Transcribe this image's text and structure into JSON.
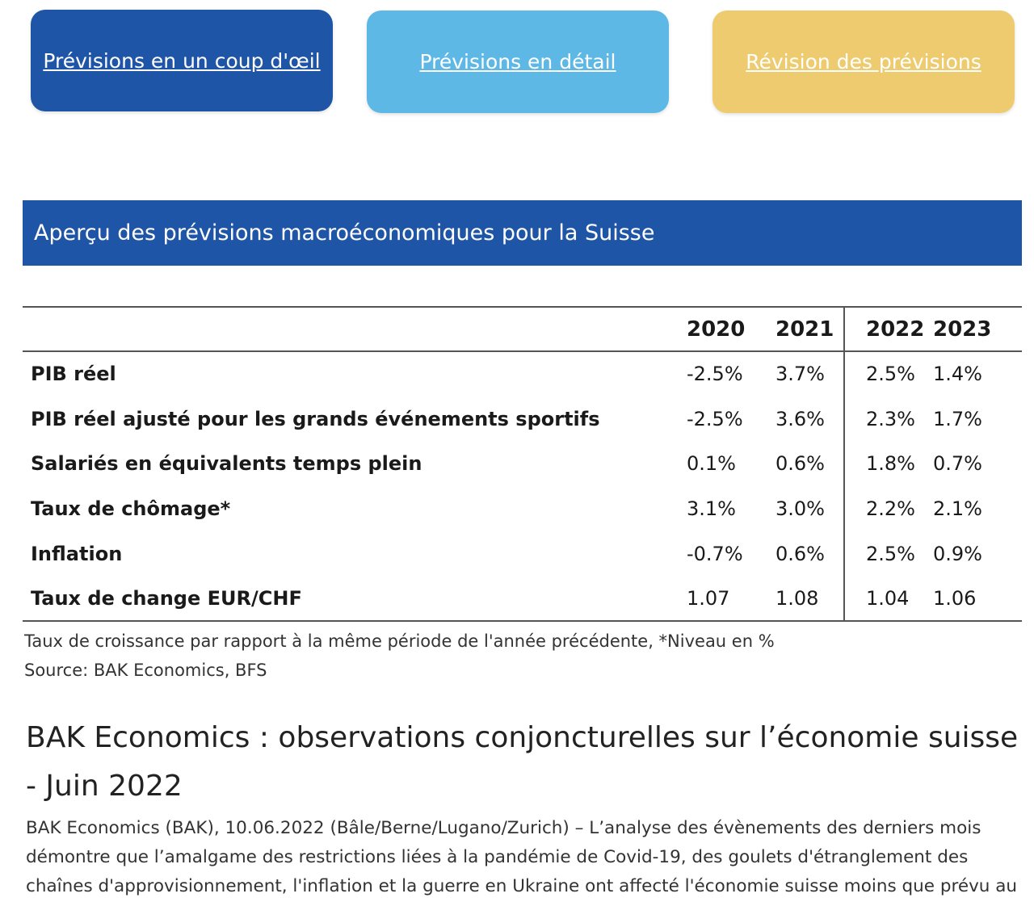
{
  "nav_buttons": {
    "glance": "Prévisions en un coup d'œil",
    "detail": "Prévisions en détail",
    "revision": "Révision des prévisions"
  },
  "colors": {
    "dark_blue": "#1f55a6",
    "light_blue": "#5db8e6",
    "yellow": "#edcb6e"
  },
  "banner": {
    "title": "Aperçu des prévisions macroéconomiques pour la Suisse"
  },
  "table": {
    "years": [
      "2020",
      "2021",
      "2022",
      "2023"
    ],
    "rows": [
      {
        "label": "PIB réel",
        "values": [
          "-2.5%",
          "3.7%",
          "2.5%",
          "1.4%"
        ]
      },
      {
        "label": "PIB réel ajusté pour les grands événements sportifs",
        "values": [
          "-2.5%",
          "3.6%",
          "2.3%",
          "1.7%"
        ]
      },
      {
        "label": "Salariés en équivalents temps plein",
        "values": [
          "0.1%",
          "0.6%",
          "1.8%",
          "0.7%"
        ]
      },
      {
        "label": "Taux de chômage*",
        "values": [
          "3.1%",
          "3.0%",
          "2.2%",
          "2.1%"
        ]
      },
      {
        "label": "Inflation",
        "values": [
          "-0.7%",
          "0.6%",
          "2.5%",
          "0.9%"
        ]
      },
      {
        "label": "Taux de change EUR/CHF",
        "values": [
          "1.07",
          "1.08",
          "1.04",
          "1.06"
        ]
      }
    ]
  },
  "footnotes": {
    "growth": "Taux de croissance par rapport à la même période de l'année précédente, *Niveau en %",
    "source": "Source: BAK Economics, BFS"
  },
  "article": {
    "title": "BAK Economics : observations conjoncturelles sur l’économie suisse - Juin 2022",
    "body": "BAK Economics (BAK), 10.06.2022 (Bâle/Berne/Lugano/Zurich) – L’analyse des évènements des derniers mois démontre que l’amalgame des restrictions liées à la pandémie de Covid-19, des goulets d'étranglement des chaînes d'approvisionnement, l'inflation et la guerre en Ukraine ont affecté l'économie suisse moins que prévu au"
  }
}
